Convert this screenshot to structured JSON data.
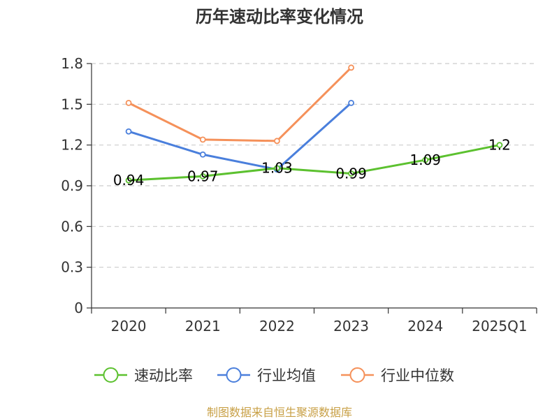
{
  "chart_data": {
    "type": "line",
    "title": "历年速动比率变化情况",
    "categories": [
      "2020",
      "2021",
      "2022",
      "2023",
      "2024",
      "2025Q1"
    ],
    "yticks": [
      "0",
      "0.3",
      "0.6",
      "0.9",
      "1.2",
      "1.5",
      "1.8"
    ],
    "ylim": [
      0,
      1.8
    ],
    "grid": true,
    "legend_position": "bottom",
    "series": [
      {
        "name": "速动比率",
        "color": "#5cc12f",
        "values": [
          0.94,
          0.97,
          1.03,
          0.99,
          1.09,
          1.2
        ],
        "labels": [
          "0.94",
          "0.97",
          "1.03",
          "0.99",
          "1.09",
          "1.2"
        ]
      },
      {
        "name": "行业均值",
        "color": "#4a7fdc",
        "values": [
          1.3,
          1.13,
          1.02,
          1.51,
          null,
          null
        ]
      },
      {
        "name": "行业中位数",
        "color": "#f5915a",
        "values": [
          1.51,
          1.24,
          1.23,
          1.77,
          null,
          null
        ]
      }
    ],
    "source": "制图数据来自恒生聚源数据库"
  }
}
